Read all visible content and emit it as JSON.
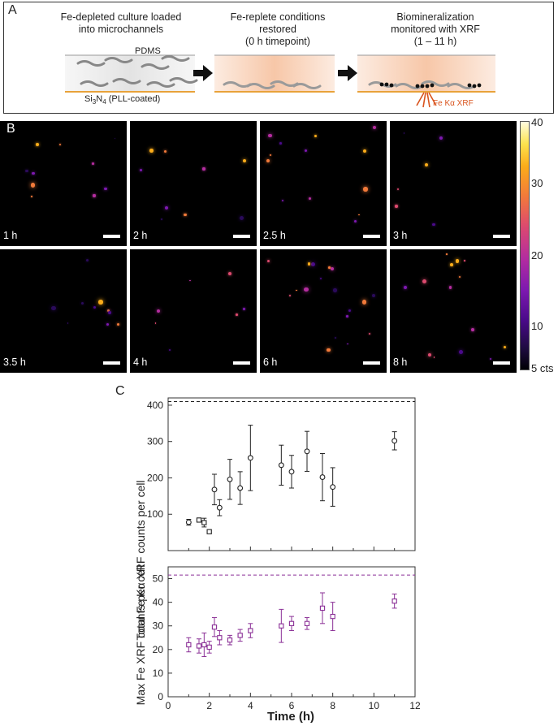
{
  "panels": {
    "a": "A",
    "b": "B",
    "c": "C"
  },
  "panelA": {
    "step1": {
      "line1": "Fe-depleted culture loaded",
      "line2": "into microchannels",
      "pdms": "PDMS",
      "substrate_main": "Si",
      "substrate_sub1": "3",
      "substrate_mid": "N",
      "substrate_sub2": "4",
      "substrate_rest": " (PLL-coated)"
    },
    "step2": {
      "line1": "Fe-replete conditions",
      "line2": "restored",
      "line3": "(0 h timepoint)"
    },
    "step3": {
      "line1": "Biomineralization",
      "line2": "monitored with XRF",
      "line3": "(1 – 11 h)",
      "xrf_label": "Fe Kα XRF"
    },
    "colors": {
      "warm_glow": "#f7c7a8",
      "substrate_line": "#e8a23a",
      "arrow": "#111111",
      "xrf_arrow": "#d9541e"
    },
    "icons": [
      "arrow-right-icon",
      "arrow-right-icon",
      "xrf-emission-icon",
      "bacterium-icon"
    ]
  },
  "panelB": {
    "tiles": [
      "1 h",
      "2 h",
      "2.5 h",
      "3 h",
      "3.5 h",
      "4 h",
      "6 h",
      "8 h"
    ],
    "colorbar": {
      "max": "40",
      "ticks": [
        "30",
        "20",
        "10"
      ],
      "min": "5 cts",
      "colormap": "inferno-like (black–purple–orange–yellow–white)"
    }
  },
  "chart_data": [
    {
      "type": "scatter",
      "title": "",
      "xlabel": "",
      "ylabel": "Total Fe Kα XRF counts per cell",
      "xlim": [
        0,
        12
      ],
      "ylim": [
        0,
        420
      ],
      "yticks": [
        "100",
        "200",
        "300",
        "400"
      ],
      "marker": "circle",
      "color": "#222222",
      "reference_line": 410,
      "points": [
        {
          "x": 1.0,
          "y": 78,
          "err": 8,
          "marker": "circle"
        },
        {
          "x": 1.5,
          "y": 84,
          "err": 5,
          "marker": "square"
        },
        {
          "x": 1.75,
          "y": 77,
          "err": 12,
          "marker": "square"
        },
        {
          "x": 2.0,
          "y": 52,
          "err": 5,
          "marker": "square"
        },
        {
          "x": 2.25,
          "y": 168,
          "err": 42,
          "marker": "circle"
        },
        {
          "x": 2.5,
          "y": 118,
          "err": 22,
          "marker": "circle"
        },
        {
          "x": 3.0,
          "y": 196,
          "err": 55,
          "marker": "circle"
        },
        {
          "x": 3.5,
          "y": 172,
          "err": 45,
          "marker": "circle"
        },
        {
          "x": 4.0,
          "y": 255,
          "err": 90,
          "marker": "circle"
        },
        {
          "x": 5.5,
          "y": 235,
          "err": 55,
          "marker": "circle"
        },
        {
          "x": 6.0,
          "y": 217,
          "err": 45,
          "marker": "circle"
        },
        {
          "x": 6.75,
          "y": 273,
          "err": 55,
          "marker": "circle"
        },
        {
          "x": 7.5,
          "y": 202,
          "err": 65,
          "marker": "circle"
        },
        {
          "x": 8.0,
          "y": 175,
          "err": 53,
          "marker": "circle"
        },
        {
          "x": 11.0,
          "y": 302,
          "err": 25,
          "marker": "circle"
        }
      ]
    },
    {
      "type": "scatter",
      "title": "",
      "xlabel": "Time (h)",
      "ylabel": "Max Fe XRF counts per cell",
      "xlim": [
        0,
        12
      ],
      "ylim": [
        0,
        55
      ],
      "xticks": [
        "0",
        "2",
        "4",
        "6",
        "8",
        "10",
        "12"
      ],
      "yticks": [
        "0",
        "10",
        "20",
        "30",
        "40",
        "50"
      ],
      "marker": "square",
      "color": "#8a2f96",
      "reference_line": 51.5,
      "points": [
        {
          "x": 1.0,
          "y": 22,
          "err": 3
        },
        {
          "x": 1.5,
          "y": 21.5,
          "err": 3
        },
        {
          "x": 1.75,
          "y": 22,
          "err": 5
        },
        {
          "x": 2.0,
          "y": 21,
          "err": 2.5
        },
        {
          "x": 2.25,
          "y": 29.5,
          "err": 4
        },
        {
          "x": 2.5,
          "y": 25,
          "err": 3
        },
        {
          "x": 3.0,
          "y": 24,
          "err": 2
        },
        {
          "x": 3.5,
          "y": 26,
          "err": 2.5
        },
        {
          "x": 4.0,
          "y": 28,
          "err": 3
        },
        {
          "x": 5.5,
          "y": 30,
          "err": 7
        },
        {
          "x": 6.0,
          "y": 31,
          "err": 3
        },
        {
          "x": 6.75,
          "y": 31,
          "err": 2.5
        },
        {
          "x": 7.5,
          "y": 37.5,
          "err": 6.5
        },
        {
          "x": 8.0,
          "y": 34,
          "err": 6
        },
        {
          "x": 11.0,
          "y": 40.5,
          "err": 3
        }
      ]
    }
  ]
}
